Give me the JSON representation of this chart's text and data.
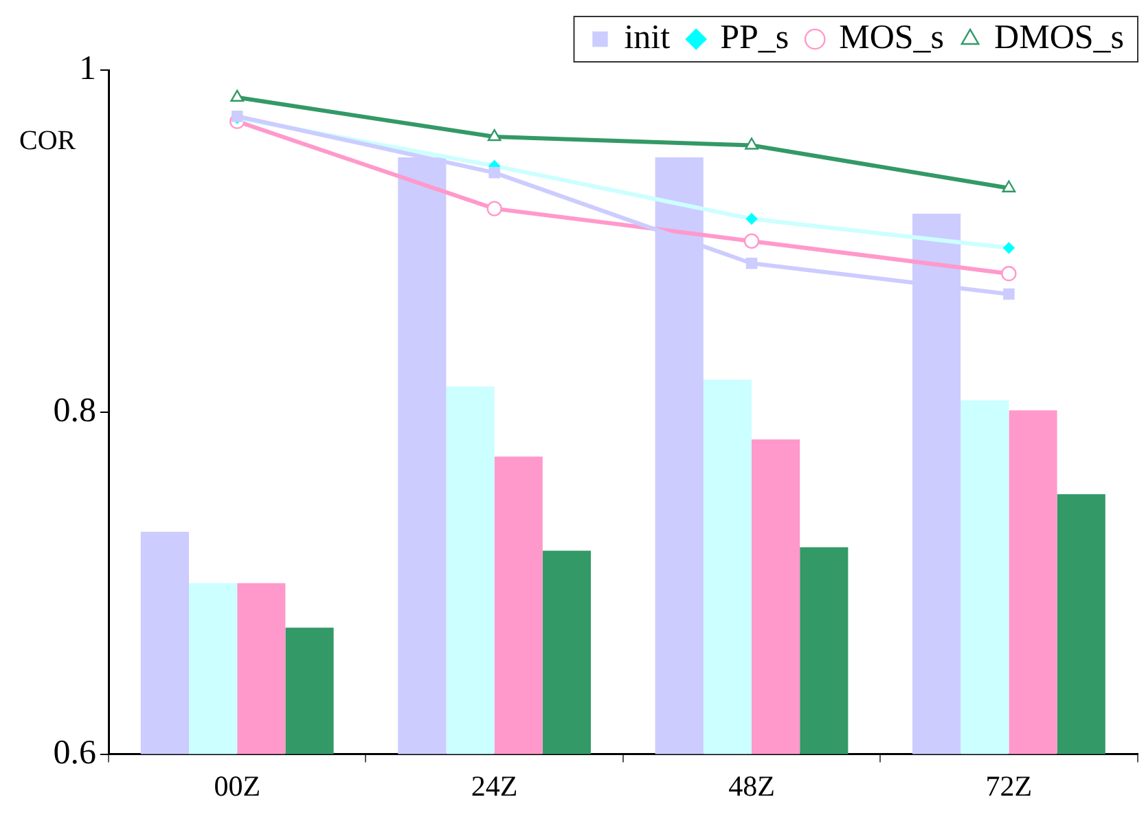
{
  "chart_data": {
    "type": "bar",
    "ylabel": "COR",
    "categories": [
      "00Z",
      "24Z",
      "48Z",
      "72Z"
    ],
    "series": [
      {
        "color": "#ccccff",
        "values": [
          0.73,
          0.949,
          0.949,
          0.916
        ]
      },
      {
        "color": "#ccffff",
        "values": [
          0.7,
          0.815,
          0.819,
          0.807
        ]
      },
      {
        "color": "#ff99cc",
        "values": [
          0.7,
          0.774,
          0.784,
          0.801
        ]
      },
      {
        "color": "#339966",
        "values": [
          0.674,
          0.719,
          0.721,
          0.752
        ]
      },
      {
        "type": "line",
        "name": "init",
        "color": "#ccccff",
        "marker": "square",
        "values": [
          0.973,
          0.94,
          0.887,
          0.869
        ]
      },
      {
        "type": "line",
        "name": "PP_s",
        "color": "#ccffff",
        "marker": "diamond",
        "values": [
          0.972,
          0.944,
          0.913,
          0.896
        ]
      },
      {
        "type": "line",
        "name": "MOS_s",
        "color": "#ff99cc",
        "marker": "circle",
        "values": [
          0.97,
          0.919,
          0.9,
          0.881
        ]
      },
      {
        "type": "line",
        "name": "DMOS_s",
        "color": "#339966",
        "marker": "triangle",
        "values": [
          0.984,
          0.961,
          0.956,
          0.931
        ]
      }
    ],
    "ylim": [
      0.6,
      1
    ],
    "yticks": [
      0.6,
      0.8,
      1
    ],
    "grid": false,
    "legend": "top right"
  }
}
